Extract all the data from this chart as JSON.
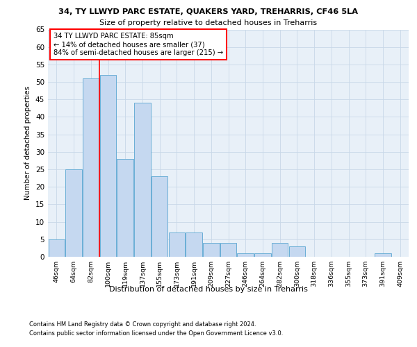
{
  "title": "34, TY LLWYD PARC ESTATE, QUAKERS YARD, TREHARRIS, CF46 5LA",
  "subtitle": "Size of property relative to detached houses in Treharris",
  "xlabel": "Distribution of detached houses by size in Treharris",
  "ylabel": "Number of detached properties",
  "categories": [
    "46sqm",
    "64sqm",
    "82sqm",
    "100sqm",
    "119sqm",
    "137sqm",
    "155sqm",
    "173sqm",
    "191sqm",
    "209sqm",
    "227sqm",
    "246sqm",
    "264sqm",
    "282sqm",
    "300sqm",
    "318sqm",
    "336sqm",
    "355sqm",
    "373sqm",
    "391sqm",
    "409sqm"
  ],
  "values": [
    5,
    25,
    51,
    52,
    28,
    44,
    23,
    7,
    7,
    4,
    4,
    1,
    1,
    4,
    3,
    0,
    0,
    0,
    0,
    1,
    0
  ],
  "bar_color": "#c5d8f0",
  "bar_edge_color": "#6aaed6",
  "red_line_index": 2,
  "annotation_text": "34 TY LLWYD PARC ESTATE: 85sqm\n← 14% of detached houses are smaller (37)\n84% of semi-detached houses are larger (215) →",
  "ylim": [
    0,
    65
  ],
  "yticks": [
    0,
    5,
    10,
    15,
    20,
    25,
    30,
    35,
    40,
    45,
    50,
    55,
    60,
    65
  ],
  "footer_line1": "Contains HM Land Registry data © Crown copyright and database right 2024.",
  "footer_line2": "Contains public sector information licensed under the Open Government Licence v3.0.",
  "bg_color": "#ffffff",
  "axes_bg_color": "#e8f0f8",
  "grid_color": "#c8d8e8"
}
